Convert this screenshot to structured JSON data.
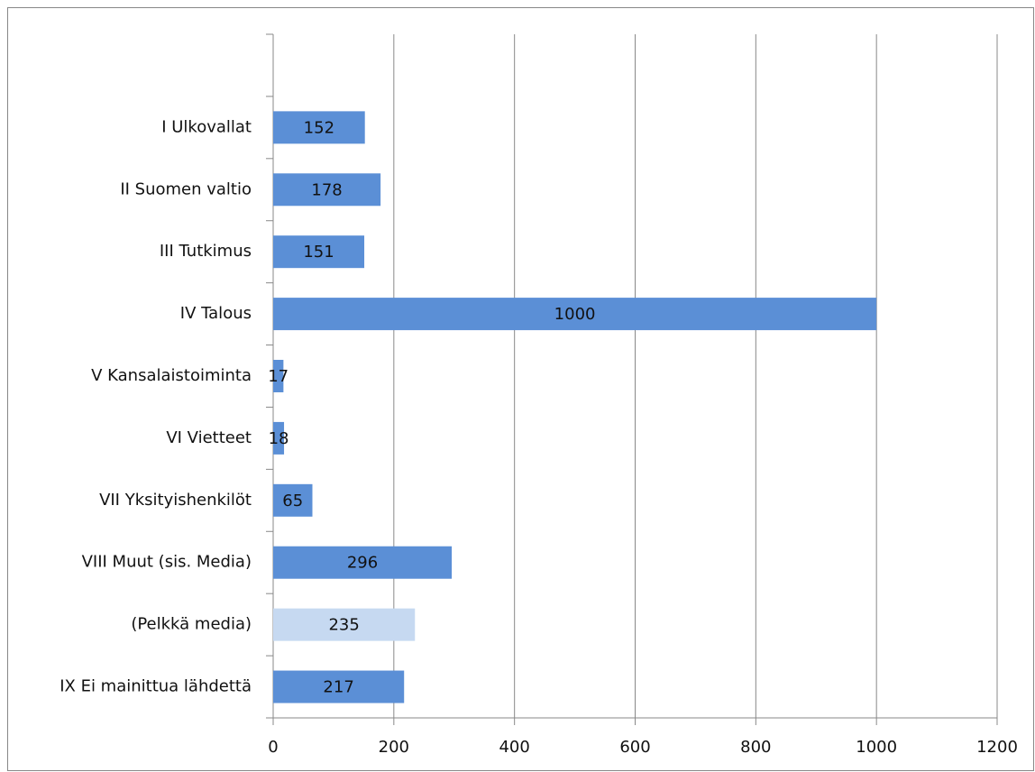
{
  "chart_data": {
    "type": "bar",
    "orientation": "horizontal",
    "categories": [
      null,
      "I Ulkovallat",
      "II Suomen valtio",
      "III Tutkimus",
      "IV Talous",
      "V Kansalaistoiminta",
      "VI Vietteet",
      "VII Yksityishenkilöt",
      "VIII Muut (sis. Media)",
      "(Pelkkä media)",
      "IX Ei mainittua lähdettä"
    ],
    "values": [
      null,
      152,
      178,
      151,
      1000,
      17,
      18,
      65,
      296,
      235,
      217
    ],
    "colors": [
      null,
      "#5b8fd6",
      "#5b8fd6",
      "#5b8fd6",
      "#5b8fd6",
      "#5b8fd6",
      "#5b8fd6",
      "#5b8fd6",
      "#5b8fd6",
      "#c6d9f1",
      "#5b8fd6"
    ],
    "xlim": [
      0,
      1200
    ],
    "xticks": [
      0,
      200,
      400,
      600,
      800,
      1000,
      1200
    ],
    "grid": true
  }
}
